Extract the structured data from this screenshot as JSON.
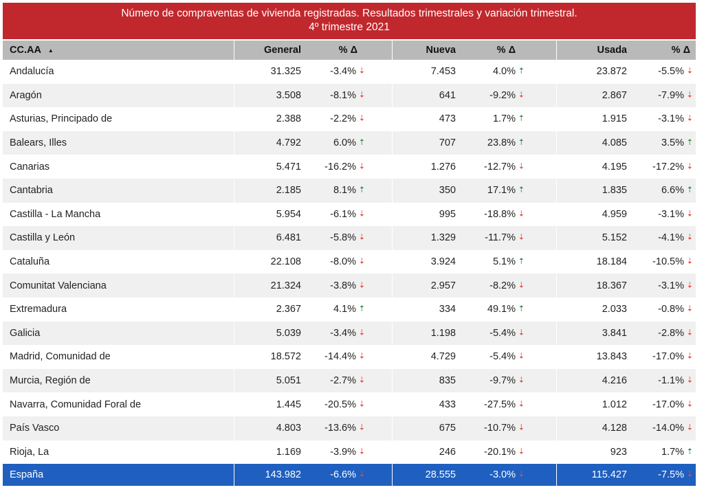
{
  "title": {
    "line1": "Número de compraventas de vivienda registradas. Resultados trimestrales  y variación trimestral.",
    "line2": "4º trimestre 2021"
  },
  "header": {
    "region": "CC.AA",
    "general": "General",
    "pct": "%",
    "delta": "Δ",
    "nueva": "Nueva",
    "usada": "Usada"
  },
  "colors": {
    "title_bg": "#c0282d",
    "total_bg": "#1f5fbf",
    "down": "#e8483f",
    "up": "#2e8b45"
  },
  "rows": [
    {
      "name": "Andalucía",
      "general": "31.325",
      "general_pct": "-3.4%",
      "general_dir": "down",
      "nueva": "7.453",
      "nueva_pct": "4.0%",
      "nueva_dir": "up",
      "usada": "23.872",
      "usada_pct": "-5.5%",
      "usada_dir": "down"
    },
    {
      "name": "Aragón",
      "general": "3.508",
      "general_pct": "-8.1%",
      "general_dir": "down",
      "nueva": "641",
      "nueva_pct": "-9.2%",
      "nueva_dir": "down",
      "usada": "2.867",
      "usada_pct": "-7.9%",
      "usada_dir": "down"
    },
    {
      "name": "Asturias, Principado de",
      "general": "2.388",
      "general_pct": "-2.2%",
      "general_dir": "down",
      "nueva": "473",
      "nueva_pct": "1.7%",
      "nueva_dir": "up",
      "usada": "1.915",
      "usada_pct": "-3.1%",
      "usada_dir": "down"
    },
    {
      "name": "Balears, Illes",
      "general": "4.792",
      "general_pct": "6.0%",
      "general_dir": "up",
      "nueva": "707",
      "nueva_pct": "23.8%",
      "nueva_dir": "up",
      "usada": "4.085",
      "usada_pct": "3.5%",
      "usada_dir": "up"
    },
    {
      "name": "Canarias",
      "general": "5.471",
      "general_pct": "-16.2%",
      "general_dir": "down",
      "nueva": "1.276",
      "nueva_pct": "-12.7%",
      "nueva_dir": "down",
      "usada": "4.195",
      "usada_pct": "-17.2%",
      "usada_dir": "down"
    },
    {
      "name": "Cantabria",
      "general": "2.185",
      "general_pct": "8.1%",
      "general_dir": "up",
      "nueva": "350",
      "nueva_pct": "17.1%",
      "nueva_dir": "up",
      "usada": "1.835",
      "usada_pct": "6.6%",
      "usada_dir": "up"
    },
    {
      "name": "Castilla - La Mancha",
      "general": "5.954",
      "general_pct": "-6.1%",
      "general_dir": "down",
      "nueva": "995",
      "nueva_pct": "-18.8%",
      "nueva_dir": "down",
      "usada": "4.959",
      "usada_pct": "-3.1%",
      "usada_dir": "down"
    },
    {
      "name": "Castilla y León",
      "general": "6.481",
      "general_pct": "-5.8%",
      "general_dir": "down",
      "nueva": "1.329",
      "nueva_pct": "-11.7%",
      "nueva_dir": "down",
      "usada": "5.152",
      "usada_pct": "-4.1%",
      "usada_dir": "down"
    },
    {
      "name": "Cataluña",
      "general": "22.108",
      "general_pct": "-8.0%",
      "general_dir": "down",
      "nueva": "3.924",
      "nueva_pct": "5.1%",
      "nueva_dir": "up",
      "usada": "18.184",
      "usada_pct": "-10.5%",
      "usada_dir": "down"
    },
    {
      "name": "Comunitat Valenciana",
      "general": "21.324",
      "general_pct": "-3.8%",
      "general_dir": "down",
      "nueva": "2.957",
      "nueva_pct": "-8.2%",
      "nueva_dir": "down",
      "usada": "18.367",
      "usada_pct": "-3.1%",
      "usada_dir": "down"
    },
    {
      "name": "Extremadura",
      "general": "2.367",
      "general_pct": "4.1%",
      "general_dir": "up",
      "nueva": "334",
      "nueva_pct": "49.1%",
      "nueva_dir": "up",
      "usada": "2.033",
      "usada_pct": "-0.8%",
      "usada_dir": "down"
    },
    {
      "name": "Galicia",
      "general": "5.039",
      "general_pct": "-3.4%",
      "general_dir": "down",
      "nueva": "1.198",
      "nueva_pct": "-5.4%",
      "nueva_dir": "down",
      "usada": "3.841",
      "usada_pct": "-2.8%",
      "usada_dir": "down"
    },
    {
      "name": "Madrid, Comunidad de",
      "general": "18.572",
      "general_pct": "-14.4%",
      "general_dir": "down",
      "nueva": "4.729",
      "nueva_pct": "-5.4%",
      "nueva_dir": "down",
      "usada": "13.843",
      "usada_pct": "-17.0%",
      "usada_dir": "down"
    },
    {
      "name": "Murcia, Región de",
      "general": "5.051",
      "general_pct": "-2.7%",
      "general_dir": "down",
      "nueva": "835",
      "nueva_pct": "-9.7%",
      "nueva_dir": "down",
      "usada": "4.216",
      "usada_pct": "-1.1%",
      "usada_dir": "down"
    },
    {
      "name": "Navarra, Comunidad Foral de",
      "general": "1.445",
      "general_pct": "-20.5%",
      "general_dir": "down",
      "nueva": "433",
      "nueva_pct": "-27.5%",
      "nueva_dir": "down",
      "usada": "1.012",
      "usada_pct": "-17.0%",
      "usada_dir": "down"
    },
    {
      "name": "País Vasco",
      "general": "4.803",
      "general_pct": "-13.6%",
      "general_dir": "down",
      "nueva": "675",
      "nueva_pct": "-10.7%",
      "nueva_dir": "down",
      "usada": "4.128",
      "usada_pct": "-14.0%",
      "usada_dir": "down"
    },
    {
      "name": "Rioja, La",
      "general": "1.169",
      "general_pct": "-3.9%",
      "general_dir": "down",
      "nueva": "246",
      "nueva_pct": "-20.1%",
      "nueva_dir": "down",
      "usada": "923",
      "usada_pct": "1.7%",
      "usada_dir": "up"
    }
  ],
  "total": {
    "name": "España",
    "general": "143.982",
    "general_pct": "-6.6%",
    "general_dir": "down",
    "nueva": "28.555",
    "nueva_pct": "-3.0%",
    "nueva_dir": "down",
    "usada": "115.427",
    "usada_pct": "-7.5%",
    "usada_dir": "down"
  }
}
